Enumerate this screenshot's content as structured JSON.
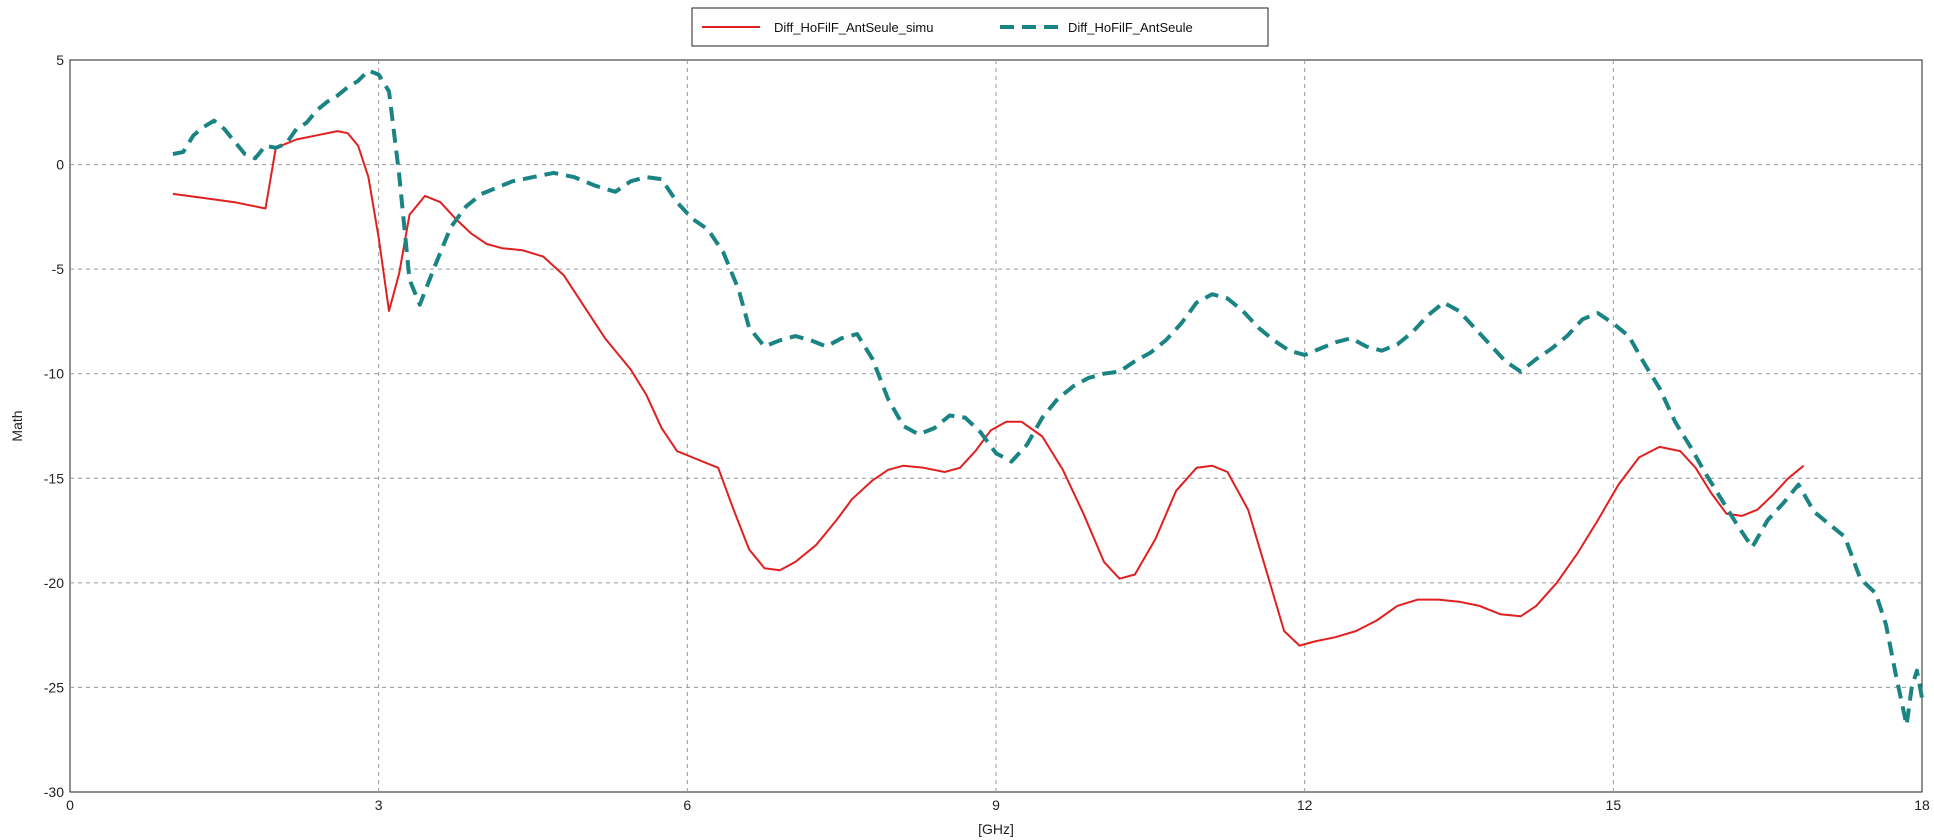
{
  "chart_data": {
    "type": "line",
    "xlabel": "[GHz]",
    "ylabel": "Math",
    "xlim": [
      0,
      18
    ],
    "ylim": [
      -30,
      5
    ],
    "xticks": [
      0,
      3,
      6,
      9,
      12,
      15,
      18
    ],
    "yticks": [
      5,
      0,
      -5,
      -10,
      -15,
      -20,
      -25,
      -30
    ],
    "grid": true,
    "legend_position": "top-center",
    "series": [
      {
        "name": "Diff_HoFilF_AntSeule_simu",
        "color": "#e02020",
        "style": "solid",
        "points": [
          [
            1.0,
            -1.4
          ],
          [
            1.3,
            -1.6
          ],
          [
            1.6,
            -1.8
          ],
          [
            1.9,
            -2.1
          ],
          [
            2.0,
            0.8
          ],
          [
            2.2,
            1.2
          ],
          [
            2.4,
            1.4
          ],
          [
            2.6,
            1.6
          ],
          [
            2.7,
            1.5
          ],
          [
            2.8,
            0.9
          ],
          [
            2.9,
            -0.6
          ],
          [
            3.0,
            -3.5
          ],
          [
            3.1,
            -7.0
          ],
          [
            3.2,
            -5.2
          ],
          [
            3.3,
            -2.4
          ],
          [
            3.45,
            -1.5
          ],
          [
            3.6,
            -1.8
          ],
          [
            3.75,
            -2.6
          ],
          [
            3.9,
            -3.3
          ],
          [
            4.05,
            -3.8
          ],
          [
            4.2,
            -4.0
          ],
          [
            4.4,
            -4.1
          ],
          [
            4.6,
            -4.4
          ],
          [
            4.8,
            -5.3
          ],
          [
            5.0,
            -6.8
          ],
          [
            5.2,
            -8.3
          ],
          [
            5.45,
            -9.8
          ],
          [
            5.6,
            -11.0
          ],
          [
            5.75,
            -12.6
          ],
          [
            5.9,
            -13.7
          ],
          [
            6.1,
            -14.1
          ],
          [
            6.3,
            -14.5
          ],
          [
            6.45,
            -16.5
          ],
          [
            6.6,
            -18.4
          ],
          [
            6.75,
            -19.3
          ],
          [
            6.9,
            -19.4
          ],
          [
            7.05,
            -19.0
          ],
          [
            7.25,
            -18.2
          ],
          [
            7.45,
            -17.0
          ],
          [
            7.6,
            -16.0
          ],
          [
            7.8,
            -15.1
          ],
          [
            7.95,
            -14.6
          ],
          [
            8.1,
            -14.4
          ],
          [
            8.3,
            -14.5
          ],
          [
            8.5,
            -14.7
          ],
          [
            8.65,
            -14.5
          ],
          [
            8.8,
            -13.7
          ],
          [
            8.95,
            -12.7
          ],
          [
            9.1,
            -12.3
          ],
          [
            9.25,
            -12.3
          ],
          [
            9.45,
            -13.0
          ],
          [
            9.65,
            -14.6
          ],
          [
            9.85,
            -16.7
          ],
          [
            10.05,
            -19.0
          ],
          [
            10.2,
            -19.8
          ],
          [
            10.35,
            -19.6
          ],
          [
            10.55,
            -17.9
          ],
          [
            10.75,
            -15.6
          ],
          [
            10.95,
            -14.5
          ],
          [
            11.1,
            -14.4
          ],
          [
            11.25,
            -14.7
          ],
          [
            11.45,
            -16.5
          ],
          [
            11.65,
            -19.8
          ],
          [
            11.8,
            -22.3
          ],
          [
            11.95,
            -23.0
          ],
          [
            12.1,
            -22.8
          ],
          [
            12.3,
            -22.6
          ],
          [
            12.5,
            -22.3
          ],
          [
            12.7,
            -21.8
          ],
          [
            12.9,
            -21.1
          ],
          [
            13.1,
            -20.8
          ],
          [
            13.3,
            -20.8
          ],
          [
            13.5,
            -20.9
          ],
          [
            13.7,
            -21.1
          ],
          [
            13.9,
            -21.5
          ],
          [
            14.1,
            -21.6
          ],
          [
            14.25,
            -21.1
          ],
          [
            14.45,
            -20.0
          ],
          [
            14.65,
            -18.6
          ],
          [
            14.85,
            -17.0
          ],
          [
            15.05,
            -15.3
          ],
          [
            15.25,
            -14.0
          ],
          [
            15.45,
            -13.5
          ],
          [
            15.65,
            -13.7
          ],
          [
            15.8,
            -14.5
          ],
          [
            15.95,
            -15.7
          ],
          [
            16.1,
            -16.7
          ],
          [
            16.25,
            -16.8
          ],
          [
            16.4,
            -16.5
          ],
          [
            16.55,
            -15.8
          ],
          [
            16.7,
            -15.0
          ],
          [
            16.85,
            -14.4
          ]
        ]
      },
      {
        "name": "Diff_HoFilF_AntSeule",
        "color": "#1a8484",
        "style": "dashed",
        "points": [
          [
            1.0,
            0.5
          ],
          [
            1.1,
            0.6
          ],
          [
            1.2,
            1.4
          ],
          [
            1.3,
            1.8
          ],
          [
            1.4,
            2.1
          ],
          [
            1.5,
            1.7
          ],
          [
            1.6,
            1.1
          ],
          [
            1.7,
            0.5
          ],
          [
            1.8,
            0.3
          ],
          [
            1.9,
            0.9
          ],
          [
            2.0,
            0.8
          ],
          [
            2.1,
            1.0
          ],
          [
            2.2,
            1.7
          ],
          [
            2.3,
            2.0
          ],
          [
            2.4,
            2.6
          ],
          [
            2.5,
            3.0
          ],
          [
            2.6,
            3.3
          ],
          [
            2.7,
            3.7
          ],
          [
            2.8,
            4.0
          ],
          [
            2.9,
            4.5
          ],
          [
            3.0,
            4.3
          ],
          [
            3.1,
            3.5
          ],
          [
            3.2,
            -0.5
          ],
          [
            3.3,
            -5.5
          ],
          [
            3.4,
            -6.7
          ],
          [
            3.55,
            -4.8
          ],
          [
            3.7,
            -3.0
          ],
          [
            3.85,
            -2.0
          ],
          [
            4.0,
            -1.4
          ],
          [
            4.15,
            -1.1
          ],
          [
            4.3,
            -0.8
          ],
          [
            4.5,
            -0.6
          ],
          [
            4.7,
            -0.4
          ],
          [
            4.9,
            -0.6
          ],
          [
            5.1,
            -1.0
          ],
          [
            5.3,
            -1.3
          ],
          [
            5.45,
            -0.8
          ],
          [
            5.6,
            -0.6
          ],
          [
            5.75,
            -0.7
          ],
          [
            5.9,
            -1.8
          ],
          [
            6.05,
            -2.6
          ],
          [
            6.2,
            -3.1
          ],
          [
            6.35,
            -4.2
          ],
          [
            6.5,
            -6.0
          ],
          [
            6.6,
            -7.8
          ],
          [
            6.75,
            -8.7
          ],
          [
            6.9,
            -8.4
          ],
          [
            7.05,
            -8.2
          ],
          [
            7.2,
            -8.4
          ],
          [
            7.35,
            -8.7
          ],
          [
            7.5,
            -8.3
          ],
          [
            7.65,
            -8.1
          ],
          [
            7.8,
            -9.3
          ],
          [
            7.95,
            -11.2
          ],
          [
            8.1,
            -12.5
          ],
          [
            8.25,
            -12.9
          ],
          [
            8.4,
            -12.6
          ],
          [
            8.55,
            -12.0
          ],
          [
            8.7,
            -12.1
          ],
          [
            8.85,
            -12.8
          ],
          [
            9.0,
            -13.8
          ],
          [
            9.15,
            -14.2
          ],
          [
            9.3,
            -13.4
          ],
          [
            9.45,
            -12.1
          ],
          [
            9.6,
            -11.2
          ],
          [
            9.75,
            -10.6
          ],
          [
            9.9,
            -10.2
          ],
          [
            10.05,
            -10.0
          ],
          [
            10.2,
            -9.9
          ],
          [
            10.35,
            -9.4
          ],
          [
            10.5,
            -9.0
          ],
          [
            10.65,
            -8.4
          ],
          [
            10.8,
            -7.6
          ],
          [
            10.95,
            -6.6
          ],
          [
            11.1,
            -6.2
          ],
          [
            11.25,
            -6.4
          ],
          [
            11.4,
            -7.0
          ],
          [
            11.55,
            -7.8
          ],
          [
            11.7,
            -8.4
          ],
          [
            11.85,
            -8.9
          ],
          [
            12.0,
            -9.1
          ],
          [
            12.15,
            -8.8
          ],
          [
            12.3,
            -8.5
          ],
          [
            12.45,
            -8.3
          ],
          [
            12.6,
            -8.7
          ],
          [
            12.75,
            -8.9
          ],
          [
            12.9,
            -8.6
          ],
          [
            13.05,
            -8.0
          ],
          [
            13.2,
            -7.2
          ],
          [
            13.35,
            -6.6
          ],
          [
            13.5,
            -7.0
          ],
          [
            13.65,
            -7.8
          ],
          [
            13.8,
            -8.6
          ],
          [
            13.95,
            -9.4
          ],
          [
            14.1,
            -9.9
          ],
          [
            14.25,
            -9.3
          ],
          [
            14.4,
            -8.8
          ],
          [
            14.55,
            -8.2
          ],
          [
            14.7,
            -7.4
          ],
          [
            14.85,
            -7.1
          ],
          [
            15.0,
            -7.6
          ],
          [
            15.15,
            -8.2
          ],
          [
            15.3,
            -9.5
          ],
          [
            15.45,
            -10.7
          ],
          [
            15.6,
            -12.3
          ],
          [
            15.75,
            -13.5
          ],
          [
            15.9,
            -14.8
          ],
          [
            16.05,
            -16.0
          ],
          [
            16.2,
            -17.2
          ],
          [
            16.35,
            -18.3
          ],
          [
            16.5,
            -17.0
          ],
          [
            16.65,
            -16.2
          ],
          [
            16.8,
            -15.3
          ],
          [
            16.95,
            -16.6
          ],
          [
            17.1,
            -17.2
          ],
          [
            17.25,
            -17.8
          ],
          [
            17.4,
            -19.8
          ],
          [
            17.55,
            -20.5
          ],
          [
            17.65,
            -22.0
          ],
          [
            17.75,
            -24.5
          ],
          [
            17.85,
            -26.8
          ],
          [
            17.9,
            -25.0
          ],
          [
            17.95,
            -24.2
          ],
          [
            18.0,
            -25.5
          ]
        ]
      }
    ]
  }
}
